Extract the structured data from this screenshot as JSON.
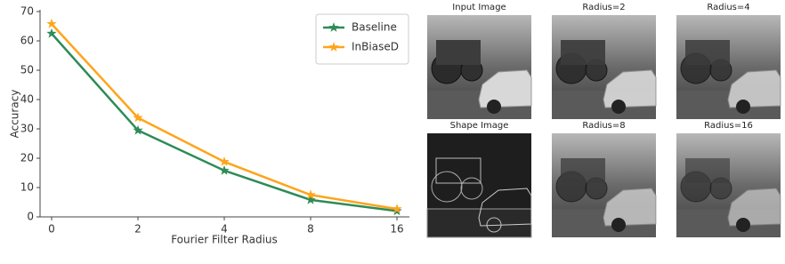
{
  "chart_data": {
    "type": "line",
    "x_label": "Fourier Filter Radius",
    "y_label": "Accuracy",
    "categories": [
      "0",
      "2",
      "4",
      "8",
      "16"
    ],
    "series": [
      {
        "name": "Baseline",
        "color": "#2e8b57",
        "values": [
          62.5,
          29.5,
          15.8,
          5.8,
          2.0
        ]
      },
      {
        "name": "InBiaseD",
        "color": "#ffa41b",
        "values": [
          65.8,
          33.8,
          18.8,
          7.5,
          2.7
        ]
      }
    ],
    "ylim": [
      0,
      70
    ],
    "yticks": [
      0,
      10,
      20,
      30,
      40,
      50,
      60,
      70
    ],
    "legend": "upper right"
  },
  "image_panels": [
    {
      "title": "Input Image"
    },
    {
      "title": "Radius=2"
    },
    {
      "title": "Radius=4"
    },
    {
      "title": "Shape Image"
    },
    {
      "title": "Radius=8"
    },
    {
      "title": "Radius=16"
    }
  ]
}
